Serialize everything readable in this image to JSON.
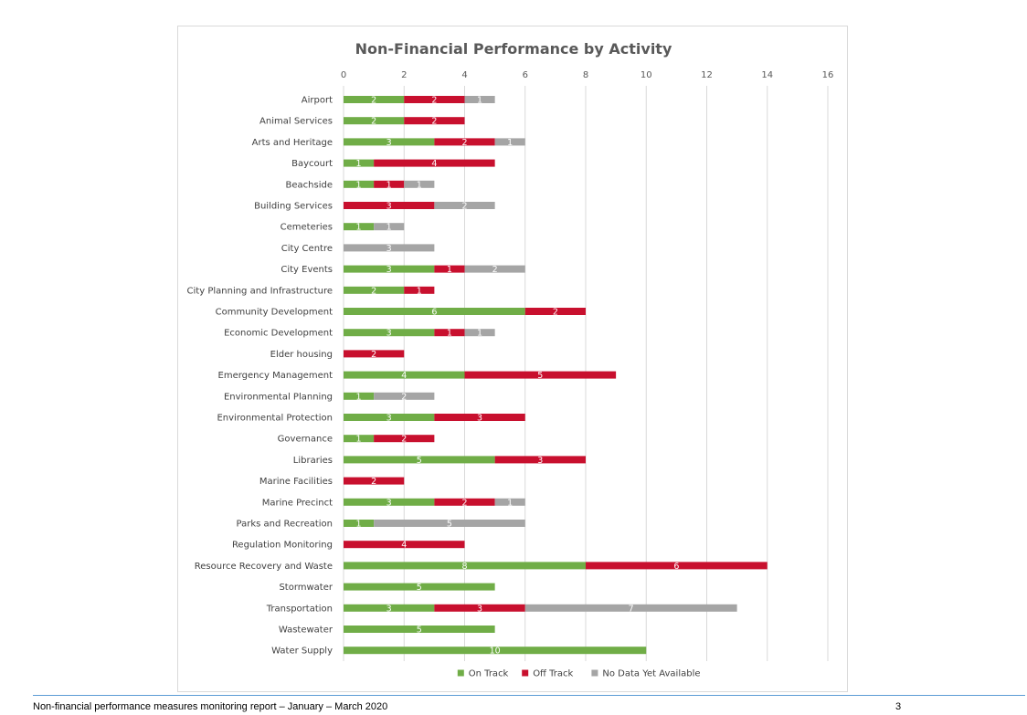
{
  "chart_data": {
    "type": "bar",
    "orientation": "horizontal",
    "stacked": true,
    "title": "Non-Financial Performance by Activity",
    "xlim": [
      0,
      16
    ],
    "xticks": [
      0,
      2,
      4,
      6,
      8,
      10,
      12,
      14,
      16
    ],
    "grid": true,
    "legend_position": "bottom",
    "categories": [
      "Airport",
      "Animal Services",
      "Arts and Heritage",
      "Baycourt",
      "Beachside",
      "Building Services",
      "Cemeteries",
      "City Centre",
      "City Events",
      "City Planning and Infrastructure",
      "Community Development",
      "Economic Development",
      "Elder housing",
      "Emergency Management",
      "Environmental Planning",
      "Environmental Protection",
      "Governance",
      "Libraries",
      "Marine Facilities",
      "Marine Precinct",
      "Parks and Recreation",
      "Regulation Monitoring",
      "Resource Recovery and Waste",
      "Stormwater",
      "Transportation",
      "Wastewater",
      "Water Supply"
    ],
    "series": [
      {
        "name": "On Track",
        "color": "#70ad47",
        "values": [
          2,
          2,
          3,
          1,
          1,
          0,
          1,
          0,
          3,
          2,
          6,
          3,
          0,
          4,
          1,
          3,
          1,
          5,
          0,
          3,
          1,
          0,
          8,
          5,
          3,
          5,
          10
        ]
      },
      {
        "name": "Off Track",
        "color": "#c8102e",
        "values": [
          2,
          2,
          2,
          4,
          1,
          3,
          0,
          0,
          1,
          1,
          2,
          1,
          2,
          5,
          0,
          3,
          2,
          3,
          2,
          2,
          0,
          4,
          6,
          0,
          3,
          0,
          0
        ]
      },
      {
        "name": "No Data Yet Available",
        "color": "#a5a5a5",
        "values": [
          1,
          0,
          1,
          0,
          1,
          2,
          1,
          3,
          2,
          0,
          0,
          1,
          0,
          0,
          2,
          0,
          0,
          0,
          0,
          1,
          5,
          0,
          0,
          0,
          7,
          0,
          0
        ]
      }
    ]
  },
  "footer": {
    "text": "Non-financial performance measures monitoring report – January – March 2020",
    "page_number": "3"
  }
}
